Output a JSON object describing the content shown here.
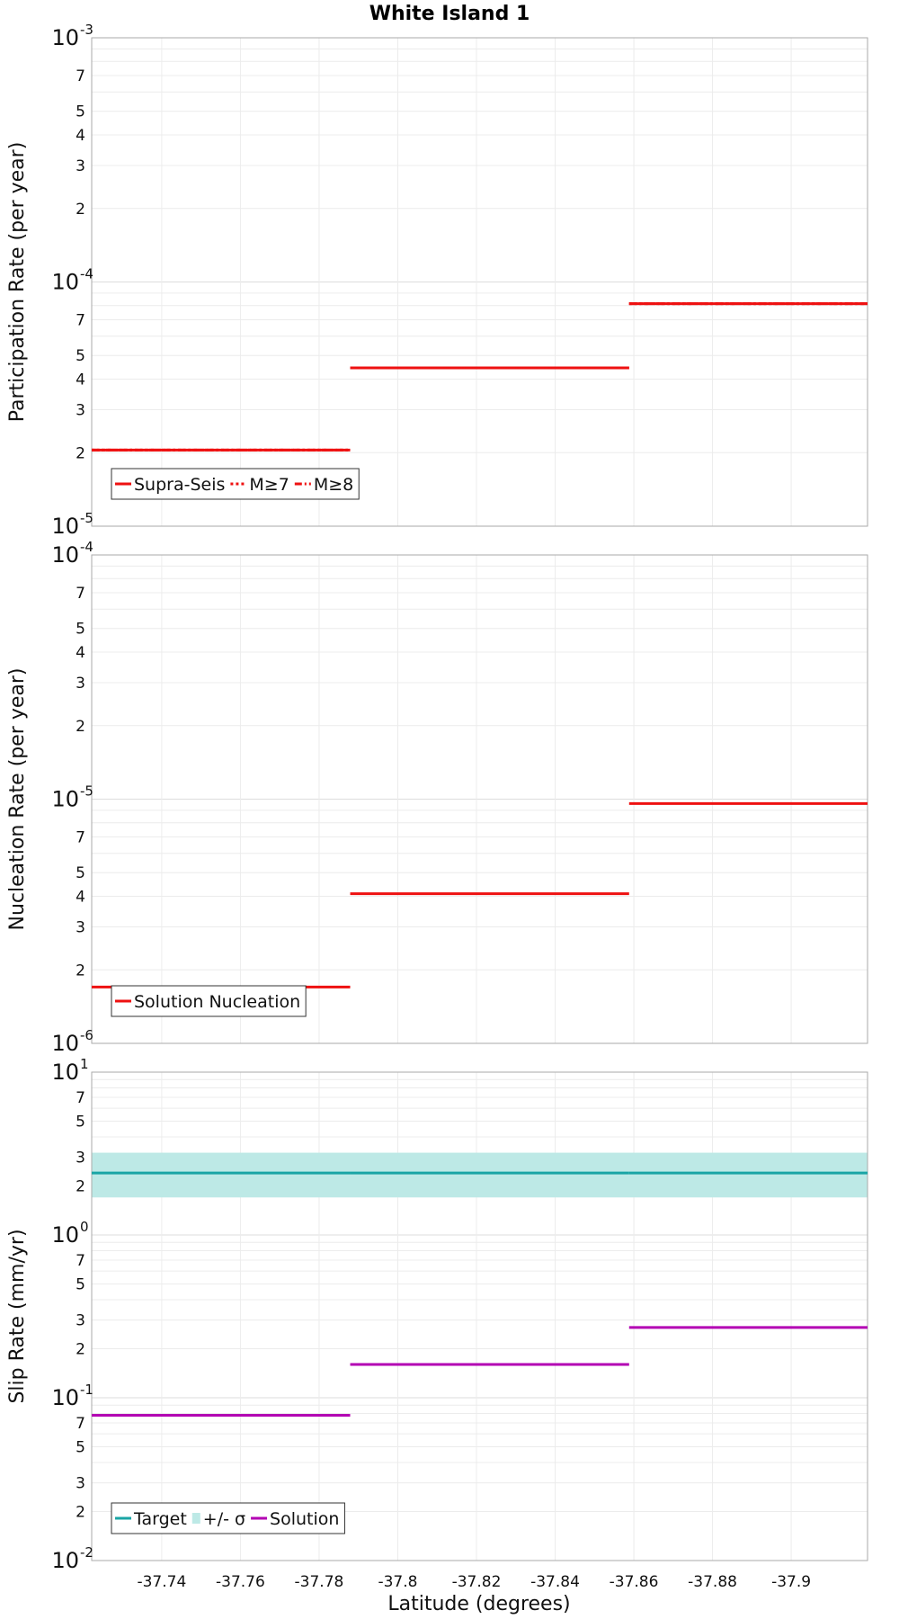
{
  "chart_data": {
    "title": "White Island 1",
    "xlabel": "Latitude (degrees)",
    "xlim": [
      -37.7222,
      -37.9194
    ],
    "xticks": [
      -37.74,
      -37.76,
      -37.78,
      -37.8,
      -37.82,
      -37.84,
      -37.86,
      -37.88,
      -37.9
    ],
    "xtick_labels": [
      "-37.74",
      "-37.76",
      "-37.78",
      "-37.8",
      "-37.82",
      "-37.84",
      "-37.86",
      "-37.88",
      "-37.9"
    ],
    "panels": [
      {
        "id": "participation",
        "type": "line",
        "yscale": "log",
        "ylabel": "Participation Rate (per year)",
        "ylim_exp": [
          -5,
          -3
        ],
        "major_labels": [
          {
            "exp": -5,
            "text": "10",
            "sup": "-5"
          },
          {
            "exp": -4,
            "text": "10",
            "sup": "-4"
          },
          {
            "exp": -3,
            "text": "10",
            "sup": "-3"
          }
        ],
        "minor_labels": [
          "2",
          "3",
          "4",
          "5",
          "7"
        ],
        "segments_x": [
          [
            -37.7222,
            -37.7879
          ],
          [
            -37.7879,
            -37.8588
          ],
          [
            -37.8588,
            -37.9194
          ]
        ],
        "series": [
          {
            "name": "Supra-Seis",
            "color": "#ee1111",
            "style": "solid",
            "values": [
              2.05e-05,
              4.45e-05,
              8.15e-05
            ]
          },
          {
            "name": "M≥7",
            "color": "#ee1111",
            "style": "dotted",
            "values": [
              2.05e-05,
              4.45e-05,
              8.15e-05
            ]
          },
          {
            "name": "M≥8",
            "color": "#ee1111",
            "style": "dashdot",
            "values": [
              2.05e-05,
              4.45e-05,
              8.15e-05
            ]
          }
        ],
        "legend": {
          "position": "bottom-left",
          "entries": [
            {
              "label": "Supra-Seis",
              "color": "#ee1111",
              "style": "solid"
            },
            {
              "label": "M≥7",
              "color": "#ee1111",
              "style": "dotted"
            },
            {
              "label": "M≥8",
              "color": "#ee1111",
              "style": "dashdot"
            }
          ]
        }
      },
      {
        "id": "nucleation",
        "type": "line",
        "yscale": "log",
        "ylabel": "Nucleation Rate (per year)",
        "ylim_exp": [
          -6,
          -4
        ],
        "major_labels": [
          {
            "exp": -6,
            "text": "10",
            "sup": "-6"
          },
          {
            "exp": -5,
            "text": "10",
            "sup": "-5"
          },
          {
            "exp": -4,
            "text": "10",
            "sup": "-4"
          }
        ],
        "minor_labels": [
          "2",
          "3",
          "4",
          "5",
          "7"
        ],
        "segments_x": [
          [
            -37.7222,
            -37.7879
          ],
          [
            -37.7879,
            -37.8588
          ],
          [
            -37.8588,
            -37.9194
          ]
        ],
        "series": [
          {
            "name": "Solution Nucleation",
            "color": "#ee1111",
            "style": "solid",
            "values": [
              1.7e-06,
              4.1e-06,
              9.6e-06
            ]
          }
        ],
        "legend": {
          "position": "bottom-left",
          "entries": [
            {
              "label": "Solution Nucleation",
              "color": "#ee1111",
              "style": "solid"
            }
          ]
        }
      },
      {
        "id": "sliprate",
        "type": "line",
        "yscale": "log",
        "ylabel": "Slip Rate (mm/yr)",
        "ylim_exp": [
          -2,
          1
        ],
        "major_labels": [
          {
            "exp": -2,
            "text": "10",
            "sup": "-2"
          },
          {
            "exp": -1,
            "text": "10",
            "sup": "-1"
          },
          {
            "exp": 0,
            "text": "10",
            "sup": "0"
          },
          {
            "exp": 1,
            "text": "10",
            "sup": "1"
          }
        ],
        "minor_labels": [
          "2",
          "3",
          "5",
          "7"
        ],
        "segments_x": [
          [
            -37.7222,
            -37.7879
          ],
          [
            -37.7879,
            -37.8588
          ],
          [
            -37.8588,
            -37.9194
          ]
        ],
        "band": {
          "name": "+/- σ",
          "color": "#bde9e6",
          "low": 1.7,
          "high": 3.2
        },
        "series": [
          {
            "name": "Target",
            "color": "#1aa5a5",
            "style": "solid",
            "values": [
              2.4,
              2.4,
              2.4
            ]
          },
          {
            "name": "Solution",
            "color": "#b300b3",
            "style": "solid",
            "values": [
              0.078,
              0.16,
              0.27
            ]
          }
        ],
        "legend": {
          "position": "bottom-left",
          "entries": [
            {
              "label": "Target",
              "color": "#1aa5a5",
              "style": "solid"
            },
            {
              "label": "+/- σ",
              "color": "#bde9e6",
              "style": "band"
            },
            {
              "label": "Solution",
              "color": "#b300b3",
              "style": "solid"
            }
          ]
        }
      }
    ]
  }
}
